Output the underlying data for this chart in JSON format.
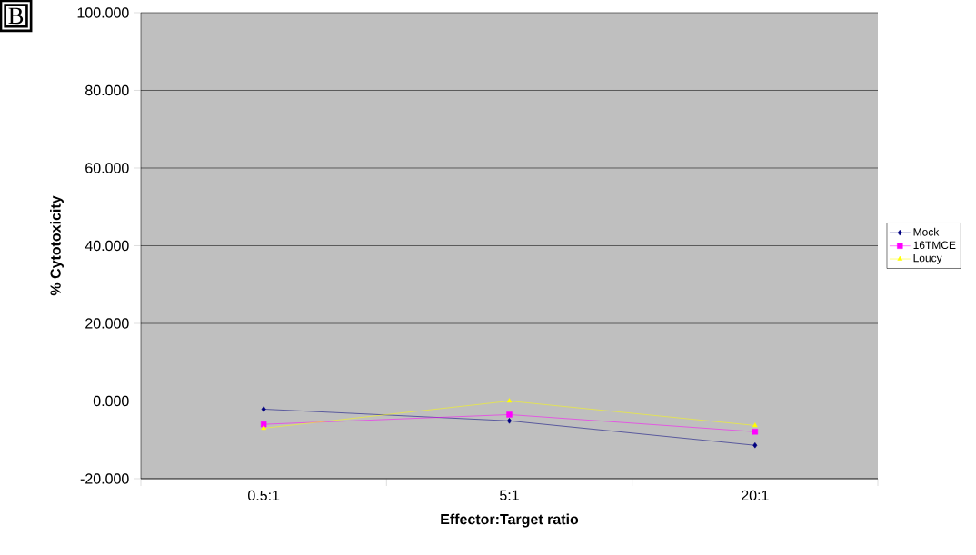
{
  "chart_data": {
    "type": "line",
    "xlabel": "Effector:Target ratio",
    "ylabel": "% Cytotoxicity",
    "annotations": [
      "B"
    ],
    "categories": [
      "0.5:1",
      "5:1",
      "20:1"
    ],
    "series": [
      {
        "name": "Mock",
        "color": "#000080",
        "marker": "diamond",
        "values": [
          -2.1,
          -5.1,
          -11.4
        ]
      },
      {
        "name": "16TMCE",
        "color": "#ff00ff",
        "marker": "square",
        "values": [
          -6.0,
          -3.5,
          -7.9
        ]
      },
      {
        "name": "Loucy",
        "color": "#ffff00",
        "marker": "triangle",
        "values": [
          -7.0,
          0.0,
          -6.3
        ]
      }
    ],
    "ylim": [
      -20,
      100
    ],
    "yticks": [
      {
        "value": -20,
        "label": "-20.000"
      },
      {
        "value": 0,
        "label": "0.000"
      },
      {
        "value": 20,
        "label": "20.000"
      },
      {
        "value": 40,
        "label": "40.000"
      },
      {
        "value": 60,
        "label": "60.000"
      },
      {
        "value": 80,
        "label": "80.000"
      },
      {
        "value": 100,
        "label": "100.000"
      }
    ],
    "grid": "y",
    "legend": "right",
    "line_style": "solid"
  }
}
